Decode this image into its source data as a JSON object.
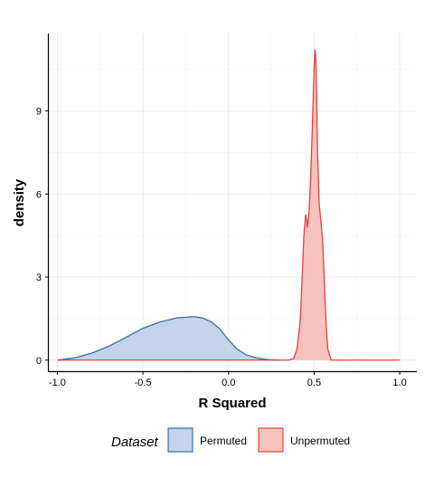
{
  "chart_data": {
    "type": "area",
    "subtype": "density",
    "title": "",
    "xlabel": "R Squared",
    "ylabel": "density",
    "xlim": [
      -1.05,
      1.1
    ],
    "ylim": [
      -0.4,
      11.8
    ],
    "x_ticks": [
      -1.0,
      -0.5,
      0.0,
      0.5,
      1.0
    ],
    "x_tick_labels": [
      "-1.0",
      "-0.5",
      "0.0",
      "0.5",
      "1.0"
    ],
    "y_ticks": [
      0,
      3,
      6,
      9
    ],
    "y_tick_labels": [
      "0",
      "3",
      "6",
      "9"
    ],
    "grid": true,
    "legend": {
      "title": "Dataset",
      "position": "bottom"
    },
    "series": [
      {
        "name": "Permuted",
        "stroke": "#3b6faf",
        "fill": "#c4d3e9",
        "x": [
          -1.0,
          -0.9,
          -0.8,
          -0.7,
          -0.6,
          -0.5,
          -0.4,
          -0.3,
          -0.2,
          -0.15,
          -0.1,
          -0.05,
          0.0,
          0.05,
          0.1,
          0.15,
          0.2,
          0.25,
          0.3
        ],
        "y": [
          0.0,
          0.08,
          0.25,
          0.5,
          0.82,
          1.15,
          1.38,
          1.53,
          1.57,
          1.52,
          1.38,
          1.12,
          0.72,
          0.4,
          0.2,
          0.1,
          0.04,
          0.01,
          0.0
        ]
      },
      {
        "name": "Unpermuted",
        "stroke": "#e0433b",
        "fill": "#f6c2bd",
        "x": [
          -1.0,
          0.35,
          0.38,
          0.4,
          0.42,
          0.43,
          0.44,
          0.45,
          0.455,
          0.46,
          0.47,
          0.48,
          0.49,
          0.5,
          0.505,
          0.51,
          0.515,
          0.52,
          0.53,
          0.54,
          0.55,
          0.56,
          0.57,
          0.58,
          0.6,
          0.65,
          1.0
        ],
        "y": [
          0.0,
          0.0,
          0.05,
          0.4,
          1.5,
          3.0,
          4.5,
          5.25,
          5.1,
          4.8,
          5.3,
          6.6,
          8.5,
          10.6,
          11.2,
          10.9,
          9.5,
          7.5,
          5.6,
          5.0,
          4.3,
          2.8,
          1.3,
          0.4,
          0.0,
          0.0,
          0.0
        ]
      }
    ]
  }
}
